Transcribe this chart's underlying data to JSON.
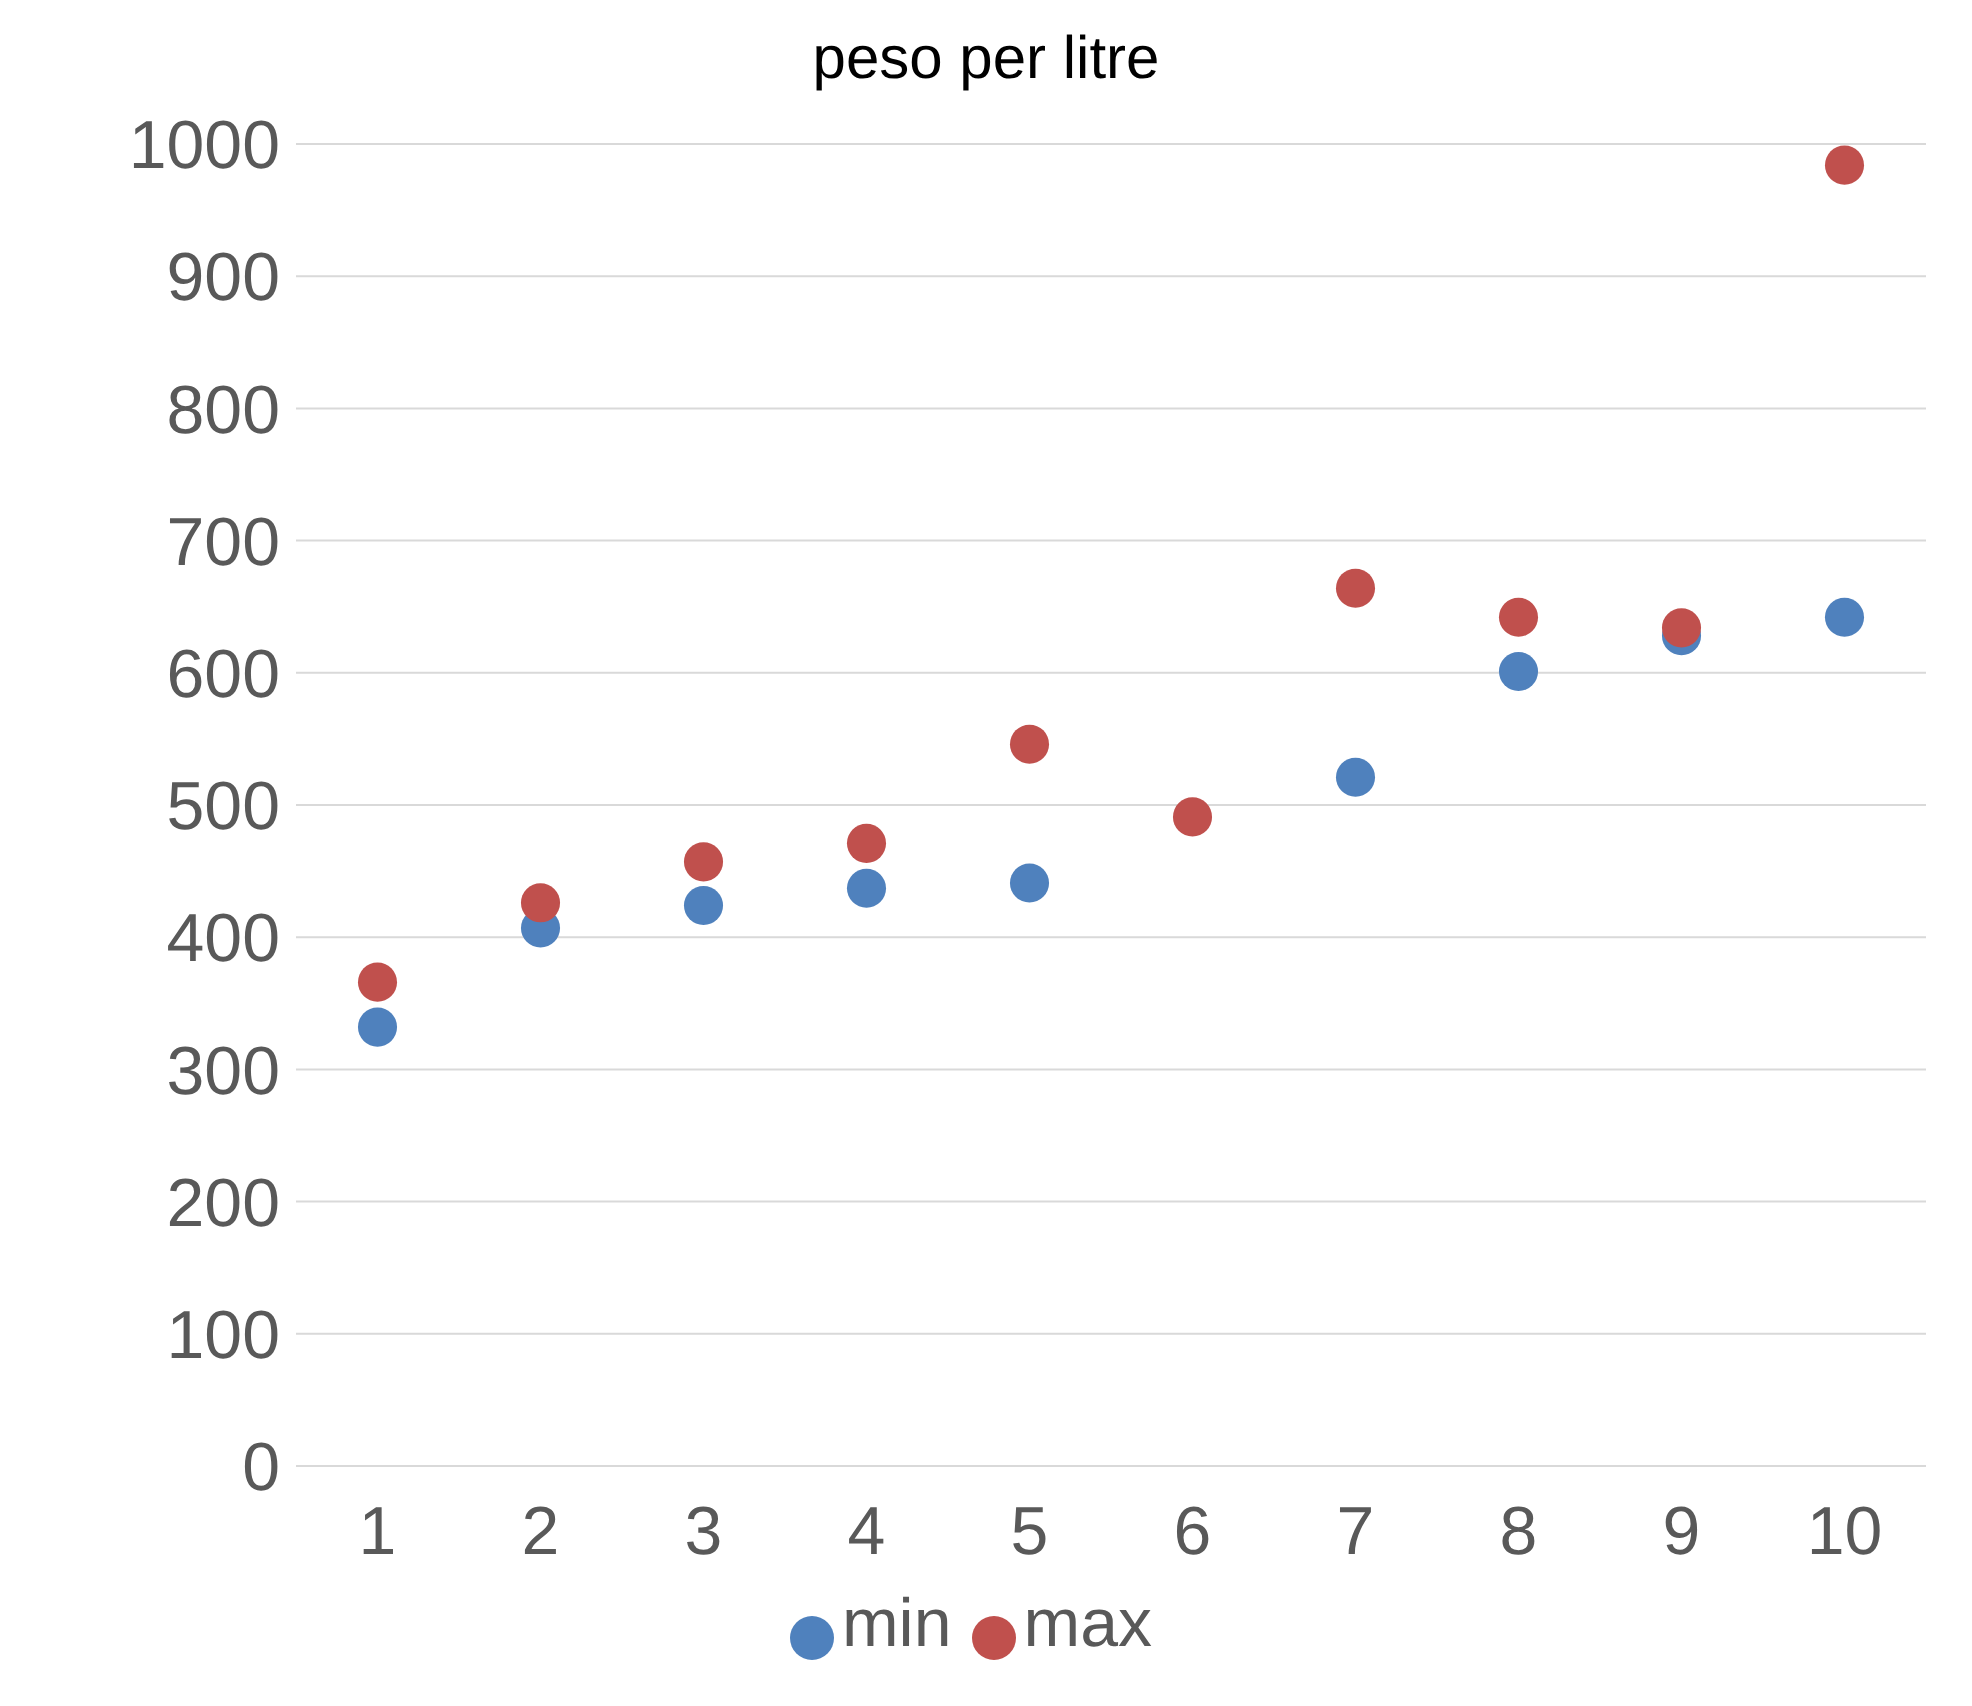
{
  "chart_data": {
    "type": "scatter",
    "title": "peso per litre",
    "categories": [
      "1",
      "2",
      "3",
      "4",
      "5",
      "6",
      "7",
      "8",
      "9",
      "10"
    ],
    "series": [
      {
        "name": "min",
        "color": "#4f81bd",
        "values": [
          332,
          407,
          424,
          437,
          441,
          null,
          521,
          601,
          628,
          642
        ]
      },
      {
        "name": "max",
        "color": "#c0504d",
        "values": [
          366,
          426,
          457,
          471,
          546,
          491,
          664,
          642,
          634,
          984
        ]
      }
    ],
    "ylim": [
      0,
      1000
    ],
    "yticks": [
      0,
      100,
      200,
      300,
      400,
      500,
      600,
      700,
      800,
      900,
      1000
    ],
    "grid": "y",
    "legend": "bottom",
    "marker": "circle"
  }
}
